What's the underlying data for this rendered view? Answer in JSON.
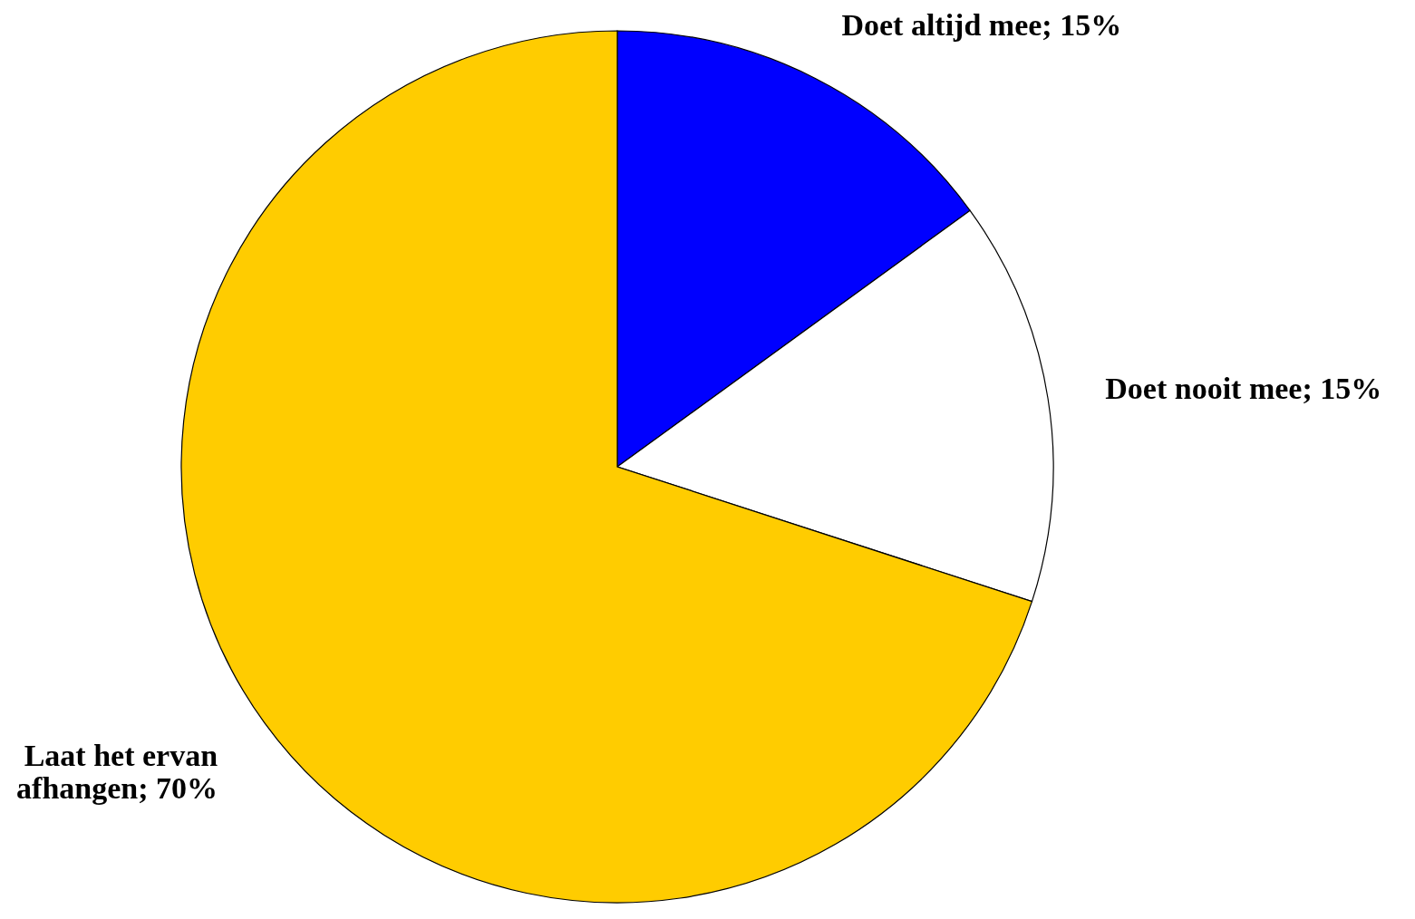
{
  "chart_data": {
    "type": "pie",
    "categories": [
      "Doet altijd mee",
      "Doet nooit mee",
      "Laat het ervan afhangen"
    ],
    "values": [
      15,
      15,
      70
    ],
    "value_labels": [
      "15%",
      "15%",
      "70%"
    ],
    "colors": [
      "#0000ff",
      "#ffffff",
      "#ffcc00"
    ]
  }
}
